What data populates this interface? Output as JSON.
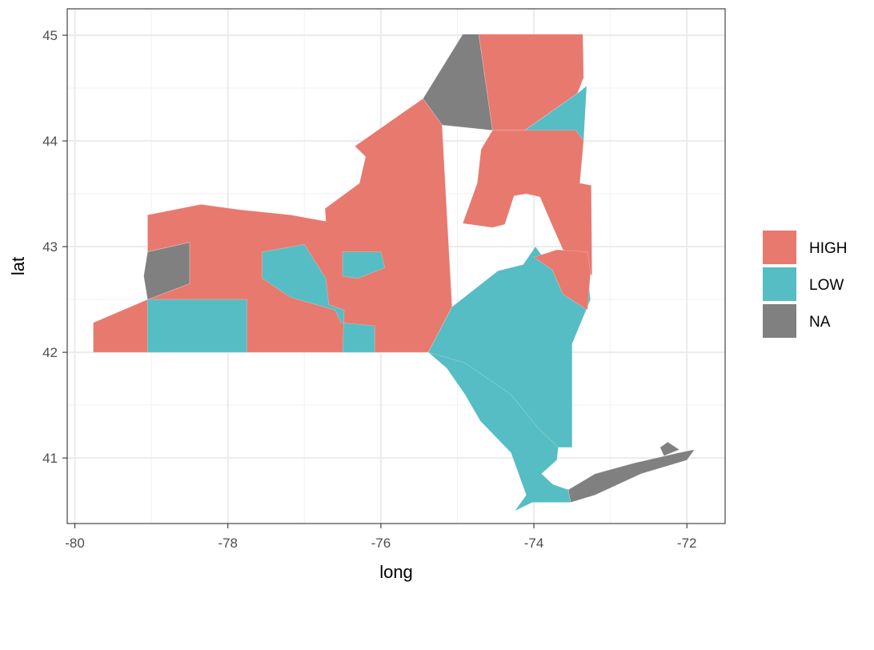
{
  "chart_data": {
    "type": "map",
    "x": {
      "title": "long",
      "range": [
        -80.1,
        -71.5
      ],
      "ticks": [
        {
          "value": -80,
          "label": "-80"
        },
        {
          "value": -78,
          "label": "-78"
        },
        {
          "value": -76,
          "label": "-76"
        },
        {
          "value": -74,
          "label": "-74"
        },
        {
          "value": -72,
          "label": "-72"
        }
      ]
    },
    "y": {
      "title": "lat",
      "range": [
        40.38,
        45.25
      ],
      "ticks": [
        {
          "value": 41,
          "label": "41"
        },
        {
          "value": 42,
          "label": "42"
        },
        {
          "value": 43,
          "label": "43"
        },
        {
          "value": 44,
          "label": "44"
        },
        {
          "value": 45,
          "label": "45"
        }
      ]
    },
    "grid": true,
    "legend": {
      "position": "right",
      "items": [
        {
          "key": "HIGH",
          "label": "HIGH",
          "color": "#E8796F"
        },
        {
          "key": "LOW",
          "label": "LOW",
          "color": "#55BDC3"
        },
        {
          "key": "NA",
          "label": "NA",
          "color": "#808080"
        }
      ]
    },
    "regions": [
      {
        "category": "NA",
        "points": [
          [
            -75.45,
            44.4
          ],
          [
            -74.93,
            45.01
          ],
          [
            -74.72,
            45.01
          ],
          [
            -74.54,
            44.1
          ],
          [
            -75.2,
            44.15
          ],
          [
            -75.45,
            44.4
          ]
        ]
      },
      {
        "category": "HIGH",
        "points": [
          [
            -74.72,
            45.01
          ],
          [
            -73.36,
            45.01
          ],
          [
            -73.35,
            44.6
          ],
          [
            -73.43,
            44.45
          ],
          [
            -74.12,
            44.1
          ],
          [
            -74.54,
            44.1
          ],
          [
            -74.72,
            45.01
          ]
        ]
      },
      {
        "category": "LOW",
        "points": [
          [
            -74.54,
            44.1
          ],
          [
            -74.12,
            44.1
          ],
          [
            -73.43,
            44.45
          ],
          [
            -73.31,
            44.52
          ],
          [
            -73.35,
            44.0
          ],
          [
            -73.4,
            43.6
          ],
          [
            -73.25,
            43.58
          ],
          [
            -73.24,
            42.72
          ],
          [
            -73.4,
            42.92
          ],
          [
            -73.62,
            42.97
          ],
          [
            -73.79,
            43.25
          ],
          [
            -73.92,
            43.47
          ],
          [
            -74.1,
            43.5
          ],
          [
            -74.26,
            43.48
          ],
          [
            -74.38,
            43.21
          ],
          [
            -74.54,
            43.18
          ],
          [
            -74.93,
            43.22
          ],
          [
            -74.74,
            43.6
          ],
          [
            -74.69,
            43.92
          ],
          [
            -74.54,
            44.1
          ]
        ]
      },
      {
        "category": "HIGH",
        "points": [
          [
            -74.27,
            43.77
          ],
          [
            -73.79,
            43.79
          ],
          [
            -73.92,
            43.47
          ],
          [
            -74.1,
            43.5
          ],
          [
            -74.27,
            43.77
          ]
        ]
      },
      {
        "category": "HIGH",
        "points": [
          [
            -75.45,
            44.4
          ],
          [
            -76.34,
            43.95
          ],
          [
            -76.2,
            43.85
          ],
          [
            -76.28,
            43.6
          ],
          [
            -76.73,
            43.36
          ],
          [
            -76.72,
            43.24
          ],
          [
            -77.18,
            43.3
          ],
          [
            -77.85,
            43.35
          ],
          [
            -78.35,
            43.4
          ],
          [
            -79.05,
            43.3
          ],
          [
            -79.05,
            42.95
          ],
          [
            -78.5,
            43.04
          ],
          [
            -78.5,
            42.65
          ],
          [
            -79.05,
            42.5
          ],
          [
            -79.76,
            42.28
          ],
          [
            -79.76,
            42.0
          ],
          [
            -75.38,
            42.0
          ],
          [
            -75.07,
            42.43
          ],
          [
            -74.47,
            42.77
          ],
          [
            -74.14,
            42.83
          ],
          [
            -73.98,
            43.0
          ],
          [
            -73.76,
            42.78
          ],
          [
            -73.3,
            42.75
          ],
          [
            -73.26,
            42.5
          ],
          [
            -73.5,
            42.5
          ],
          [
            -73.24,
            42.72
          ],
          [
            -73.25,
            43.58
          ],
          [
            -73.4,
            43.6
          ],
          [
            -73.35,
            44.0
          ],
          [
            -73.45,
            44.1
          ],
          [
            -74.12,
            44.1
          ],
          [
            -74.54,
            44.1
          ],
          [
            -74.69,
            43.92
          ],
          [
            -74.74,
            43.6
          ],
          [
            -74.93,
            43.22
          ],
          [
            -74.54,
            43.18
          ],
          [
            -74.38,
            43.21
          ],
          [
            -74.26,
            43.48
          ],
          [
            -74.1,
            43.5
          ],
          [
            -73.92,
            43.47
          ],
          [
            -73.79,
            43.25
          ],
          [
            -73.62,
            42.97
          ],
          [
            -73.4,
            42.92
          ],
          [
            -73.24,
            42.72
          ],
          [
            -73.5,
            42.5
          ],
          [
            -73.26,
            42.5
          ],
          [
            -73.3,
            42.75
          ],
          [
            -73.76,
            42.78
          ],
          [
            -73.98,
            43.0
          ],
          [
            -74.14,
            42.83
          ],
          [
            -74.47,
            42.77
          ],
          [
            -75.07,
            42.43
          ],
          [
            -75.2,
            44.15
          ],
          [
            -75.45,
            44.4
          ]
        ]
      },
      {
        "category": "NA",
        "points": [
          [
            -79.05,
            42.95
          ],
          [
            -78.5,
            43.04
          ],
          [
            -78.5,
            42.65
          ],
          [
            -79.05,
            42.5
          ],
          [
            -79.1,
            42.72
          ],
          [
            -79.05,
            42.95
          ]
        ]
      },
      {
        "category": "LOW",
        "points": [
          [
            -79.05,
            42.5
          ],
          [
            -78.5,
            42.5
          ],
          [
            -77.75,
            42.5
          ],
          [
            -77.75,
            42.0
          ],
          [
            -79.05,
            42.0
          ],
          [
            -79.05,
            42.5
          ]
        ]
      },
      {
        "category": "LOW",
        "points": [
          [
            -77.55,
            42.95
          ],
          [
            -77.0,
            43.02
          ],
          [
            -76.72,
            42.7
          ],
          [
            -76.68,
            42.45
          ],
          [
            -76.48,
            42.4
          ],
          [
            -76.5,
            42.0
          ],
          [
            -76.08,
            42.0
          ],
          [
            -76.08,
            42.25
          ],
          [
            -76.52,
            42.28
          ],
          [
            -76.6,
            42.4
          ],
          [
            -77.18,
            42.52
          ],
          [
            -77.55,
            42.7
          ],
          [
            -77.55,
            42.95
          ]
        ]
      },
      {
        "category": "LOW",
        "points": [
          [
            -76.5,
            42.95
          ],
          [
            -76.0,
            42.95
          ],
          [
            -75.95,
            42.8
          ],
          [
            -76.3,
            42.7
          ],
          [
            -76.5,
            42.72
          ],
          [
            -76.5,
            42.95
          ]
        ]
      },
      {
        "category": "LOW",
        "points": [
          [
            -75.38,
            42.0
          ],
          [
            -74.9,
            41.9
          ],
          [
            -74.3,
            41.6
          ],
          [
            -73.94,
            41.28
          ],
          [
            -73.68,
            41.1
          ],
          [
            -73.7,
            40.98
          ],
          [
            -73.9,
            40.85
          ],
          [
            -73.75,
            40.75
          ],
          [
            -73.55,
            40.7
          ],
          [
            -73.52,
            40.58
          ],
          [
            -74.02,
            40.58
          ],
          [
            -74.25,
            40.5
          ],
          [
            -74.1,
            40.65
          ],
          [
            -74.3,
            41.05
          ],
          [
            -74.7,
            41.35
          ],
          [
            -74.9,
            41.6
          ],
          [
            -75.14,
            41.85
          ],
          [
            -75.38,
            42.0
          ],
          [
            -75.07,
            42.43
          ],
          [
            -74.47,
            42.77
          ],
          [
            -74.14,
            42.83
          ],
          [
            -73.98,
            43.0
          ],
          [
            -73.76,
            42.78
          ],
          [
            -73.3,
            42.75
          ],
          [
            -73.26,
            42.5
          ],
          [
            -73.5,
            42.08
          ],
          [
            -73.5,
            41.6
          ],
          [
            -73.5,
            41.1
          ],
          [
            -73.68,
            41.1
          ],
          [
            -73.94,
            41.28
          ],
          [
            -74.3,
            41.6
          ],
          [
            -74.9,
            41.9
          ],
          [
            -75.38,
            42.0
          ]
        ]
      },
      {
        "category": "HIGH",
        "points": [
          [
            -74.0,
            42.9
          ],
          [
            -73.76,
            42.78
          ],
          [
            -73.62,
            42.55
          ],
          [
            -73.3,
            42.4
          ],
          [
            -73.26,
            42.75
          ],
          [
            -73.3,
            42.95
          ],
          [
            -73.7,
            42.97
          ],
          [
            -74.0,
            42.9
          ]
        ]
      },
      {
        "category": "NA",
        "points": [
          [
            -73.55,
            40.7
          ],
          [
            -73.2,
            40.85
          ],
          [
            -72.7,
            40.95
          ],
          [
            -72.1,
            41.05
          ],
          [
            -71.9,
            41.08
          ],
          [
            -72.0,
            40.98
          ],
          [
            -72.6,
            40.85
          ],
          [
            -73.2,
            40.65
          ],
          [
            -73.52,
            40.58
          ],
          [
            -73.55,
            40.7
          ]
        ]
      },
      {
        "category": "NA",
        "points": [
          [
            -72.35,
            41.1
          ],
          [
            -72.25,
            41.15
          ],
          [
            -72.1,
            41.08
          ],
          [
            -72.3,
            41.02
          ],
          [
            -72.35,
            41.1
          ]
        ]
      }
    ]
  }
}
